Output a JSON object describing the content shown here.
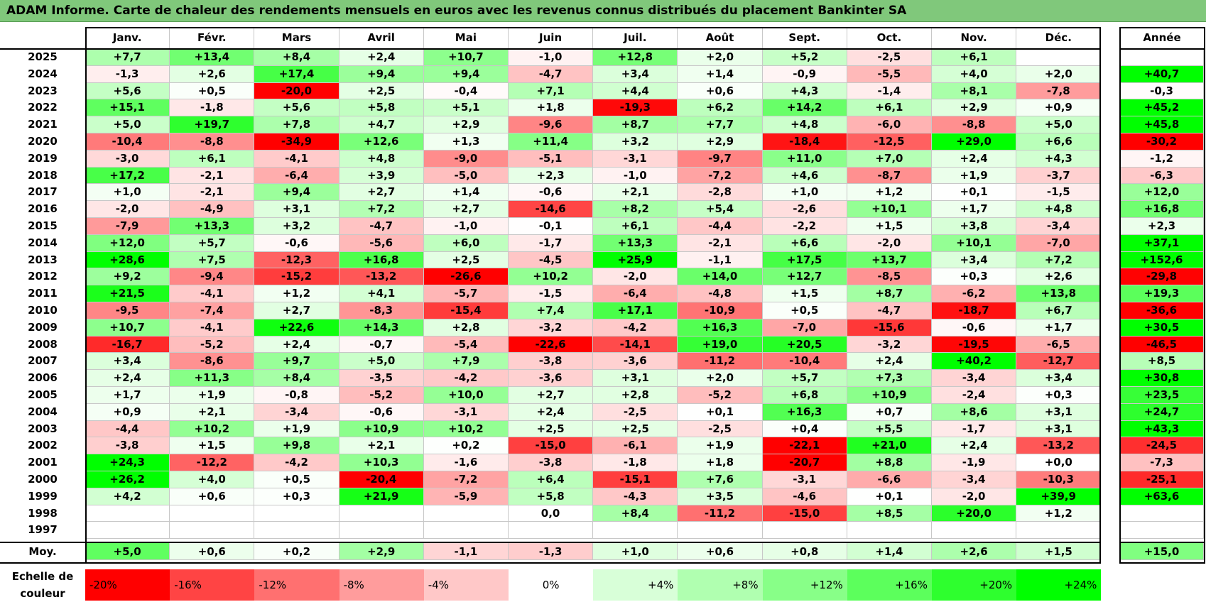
{
  "title": "ADAM Informe. Carte de chaleur des rendements mensuels en euros avec les revenus connus distribués du placement Bankinter SA",
  "colors": {
    "title_bg": "#80c87b",
    "neg_max": "#ff0000",
    "zero": "#ffffff",
    "pos_max": "#00ff00"
  },
  "chart_data": {
    "type": "heatmap",
    "title": "ADAM Informe. Carte de chaleur des rendements mensuels en euros avec les revenus connus distribués du placement Bankinter SA",
    "months": [
      "Janv.",
      "Févr.",
      "Mars",
      "Avril",
      "Mai",
      "Juin",
      "Juil.",
      "Août",
      "Sept.",
      "Oct.",
      "Nov.",
      "Déc."
    ],
    "year_header": "Année",
    "rows": [
      {
        "year": "2025",
        "values": [
          "+7,7",
          "+13,4",
          "+8,4",
          "+2,4",
          "+10,7",
          "-1,0",
          "+12,8",
          "+2,0",
          "+5,2",
          "-2,5",
          "+6,1",
          ""
        ],
        "annual": ""
      },
      {
        "year": "2024",
        "values": [
          "-1,3",
          "+2,6",
          "+17,4",
          "+9,4",
          "+9,4",
          "-4,7",
          "+3,4",
          "+1,4",
          "-0,9",
          "-5,5",
          "+4,0",
          "+2,0"
        ],
        "annual": "+40,7"
      },
      {
        "year": "2023",
        "values": [
          "+5,6",
          "+0,5",
          "-20,0",
          "+2,5",
          "-0,4",
          "+7,1",
          "+4,4",
          "+0,6",
          "+4,3",
          "-1,4",
          "+8,1",
          "-7,8"
        ],
        "annual": "-0,3"
      },
      {
        "year": "2022",
        "values": [
          "+15,1",
          "-1,8",
          "+5,6",
          "+5,8",
          "+5,1",
          "+1,8",
          "-19,3",
          "+6,2",
          "+14,2",
          "+6,1",
          "+2,9",
          "+0,9"
        ],
        "annual": "+45,2"
      },
      {
        "year": "2021",
        "values": [
          "+5,0",
          "+19,7",
          "+7,8",
          "+4,7",
          "+2,9",
          "-9,6",
          "+8,7",
          "+7,7",
          "+4,8",
          "-6,0",
          "-8,8",
          "+5,0"
        ],
        "annual": "+45,8"
      },
      {
        "year": "2020",
        "values": [
          "-10,4",
          "-8,8",
          "-34,9",
          "+12,6",
          "+1,3",
          "+11,4",
          "+3,2",
          "+2,9",
          "-18,4",
          "-12,5",
          "+29,0",
          "+6,6"
        ],
        "annual": "-30,2"
      },
      {
        "year": "2019",
        "values": [
          "-3,0",
          "+6,1",
          "-4,1",
          "+4,8",
          "-9,0",
          "-5,1",
          "-3,1",
          "-9,7",
          "+11,0",
          "+7,0",
          "+2,4",
          "+4,3"
        ],
        "annual": "-1,2"
      },
      {
        "year": "2018",
        "values": [
          "+17,2",
          "-2,1",
          "-6,4",
          "+3,9",
          "-5,0",
          "+2,3",
          "-1,0",
          "-7,2",
          "+4,6",
          "-8,7",
          "+1,9",
          "-3,7"
        ],
        "annual": "-6,3"
      },
      {
        "year": "2017",
        "values": [
          "+1,0",
          "-2,1",
          "+9,4",
          "+2,7",
          "+1,4",
          "-0,6",
          "+2,1",
          "-2,8",
          "+1,0",
          "+1,2",
          "+0,1",
          "-1,5"
        ],
        "annual": "+12,0"
      },
      {
        "year": "2016",
        "values": [
          "-2,0",
          "-4,9",
          "+3,1",
          "+7,2",
          "+2,7",
          "-14,6",
          "+8,2",
          "+5,4",
          "-2,6",
          "+10,1",
          "+1,7",
          "+4,8"
        ],
        "annual": "+16,8"
      },
      {
        "year": "2015",
        "values": [
          "-7,9",
          "+13,3",
          "+3,2",
          "-4,7",
          "-1,0",
          "-0,1",
          "+6,1",
          "-4,4",
          "-2,2",
          "+1,5",
          "+3,8",
          "-3,4"
        ],
        "annual": "+2,3"
      },
      {
        "year": "2014",
        "values": [
          "+12,0",
          "+5,7",
          "-0,6",
          "-5,6",
          "+6,0",
          "-1,7",
          "+13,3",
          "-2,1",
          "+6,6",
          "-2,0",
          "+10,1",
          "-7,0"
        ],
        "annual": "+37,1"
      },
      {
        "year": "2013",
        "values": [
          "+28,6",
          "+7,5",
          "-12,3",
          "+16,8",
          "+2,5",
          "-4,5",
          "+25,9",
          "-1,1",
          "+17,5",
          "+13,7",
          "+3,4",
          "+7,2"
        ],
        "annual": "+152,6"
      },
      {
        "year": "2012",
        "values": [
          "+9,2",
          "-9,4",
          "-15,2",
          "-13,2",
          "-26,6",
          "+10,2",
          "-2,0",
          "+14,0",
          "+12,7",
          "-8,5",
          "+0,3",
          "+2,6"
        ],
        "annual": "-29,8"
      },
      {
        "year": "2011",
        "values": [
          "+21,5",
          "-4,1",
          "+1,2",
          "+4,1",
          "-5,7",
          "-1,5",
          "-6,4",
          "-4,8",
          "+1,5",
          "+8,7",
          "-6,2",
          "+13,8"
        ],
        "annual": "+19,3"
      },
      {
        "year": "2010",
        "values": [
          "-9,5",
          "-7,4",
          "+2,7",
          "-8,3",
          "-15,4",
          "+7,4",
          "+17,1",
          "-10,9",
          "+0,5",
          "-4,7",
          "-18,7",
          "+6,7"
        ],
        "annual": "-36,6"
      },
      {
        "year": "2009",
        "values": [
          "+10,7",
          "-4,1",
          "+22,6",
          "+14,3",
          "+2,8",
          "-3,2",
          "-4,2",
          "+16,3",
          "-7,0",
          "-15,6",
          "-0,6",
          "+1,7"
        ],
        "annual": "+30,5"
      },
      {
        "year": "2008",
        "values": [
          "-16,7",
          "-5,2",
          "+2,4",
          "-0,7",
          "-5,4",
          "-22,6",
          "-14,1",
          "+19,0",
          "+20,5",
          "-3,2",
          "-19,5",
          "-6,5"
        ],
        "annual": "-46,5"
      },
      {
        "year": "2007",
        "values": [
          "+3,4",
          "-8,6",
          "+9,7",
          "+5,0",
          "+7,9",
          "-3,8",
          "-3,6",
          "-11,2",
          "-10,4",
          "+2,4",
          "+40,2",
          "-12,7"
        ],
        "annual": "+8,5"
      },
      {
        "year": "2006",
        "values": [
          "+2,4",
          "+11,3",
          "+8,4",
          "-3,5",
          "-4,2",
          "-3,6",
          "+3,1",
          "+2,0",
          "+5,7",
          "+7,3",
          "-3,4",
          "+3,4"
        ],
        "annual": "+30,8"
      },
      {
        "year": "2005",
        "values": [
          "+1,7",
          "+1,9",
          "-0,8",
          "-5,2",
          "+10,0",
          "+2,7",
          "+2,8",
          "-5,2",
          "+6,8",
          "+10,9",
          "-2,4",
          "+0,3"
        ],
        "annual": "+23,5"
      },
      {
        "year": "2004",
        "values": [
          "+0,9",
          "+2,1",
          "-3,4",
          "-0,6",
          "-3,1",
          "+2,4",
          "-2,5",
          "+0,1",
          "+16,3",
          "+0,7",
          "+8,6",
          "+3,1"
        ],
        "annual": "+24,7"
      },
      {
        "year": "2003",
        "values": [
          "-4,4",
          "+10,2",
          "+1,9",
          "+10,9",
          "+10,2",
          "+2,5",
          "+2,5",
          "-2,5",
          "+0,4",
          "+5,5",
          "-1,7",
          "+3,1"
        ],
        "annual": "+43,3"
      },
      {
        "year": "2002",
        "values": [
          "-3,8",
          "+1,5",
          "+9,8",
          "+2,1",
          "+0,2",
          "-15,0",
          "-6,1",
          "+1,9",
          "-22,1",
          "+21,0",
          "+2,4",
          "-13,2"
        ],
        "annual": "-24,5"
      },
      {
        "year": "2001",
        "values": [
          "+24,3",
          "-12,2",
          "-4,2",
          "+10,3",
          "-1,6",
          "-3,8",
          "-1,8",
          "+1,8",
          "-20,7",
          "+8,8",
          "-1,9",
          "+0,0"
        ],
        "annual": "-7,3"
      },
      {
        "year": "2000",
        "values": [
          "+26,2",
          "+4,0",
          "+0,5",
          "-20,4",
          "-7,2",
          "+6,4",
          "-15,1",
          "+7,6",
          "-3,1",
          "-6,6",
          "-3,4",
          "-10,3"
        ],
        "annual": "-25,1"
      },
      {
        "year": "1999",
        "values": [
          "+4,2",
          "+0,6",
          "+0,3",
          "+21,9",
          "-5,9",
          "+5,8",
          "-4,3",
          "+3,5",
          "-4,6",
          "+0,1",
          "-2,0",
          "+39,9"
        ],
        "annual": "+63,6"
      },
      {
        "year": "1998",
        "values": [
          "",
          "",
          "",
          "",
          "",
          "0,0",
          "+8,4",
          "-11,2",
          "-15,0",
          "+8,5",
          "+20,0",
          "+1,2"
        ],
        "annual": ""
      },
      {
        "year": "1997",
        "values": [
          "",
          "",
          "",
          "",
          "",
          "",
          "",
          "",
          "",
          "",
          "",
          ""
        ],
        "annual": ""
      }
    ],
    "average": {
      "label": "Moy.",
      "values": [
        "+5,0",
        "+0,6",
        "+0,2",
        "+2,9",
        "-1,1",
        "-1,3",
        "+1,0",
        "+0,6",
        "+0,8",
        "+1,4",
        "+2,6",
        "+1,5"
      ],
      "annual": "+15,0"
    },
    "scale": {
      "label": "Echelle de couleur",
      "steps": [
        "-20%",
        "-16%",
        "-12%",
        "-8%",
        "-4%",
        "0%",
        "+4%",
        "+8%",
        "+12%",
        "+16%",
        "+20%",
        "+24%"
      ]
    }
  }
}
